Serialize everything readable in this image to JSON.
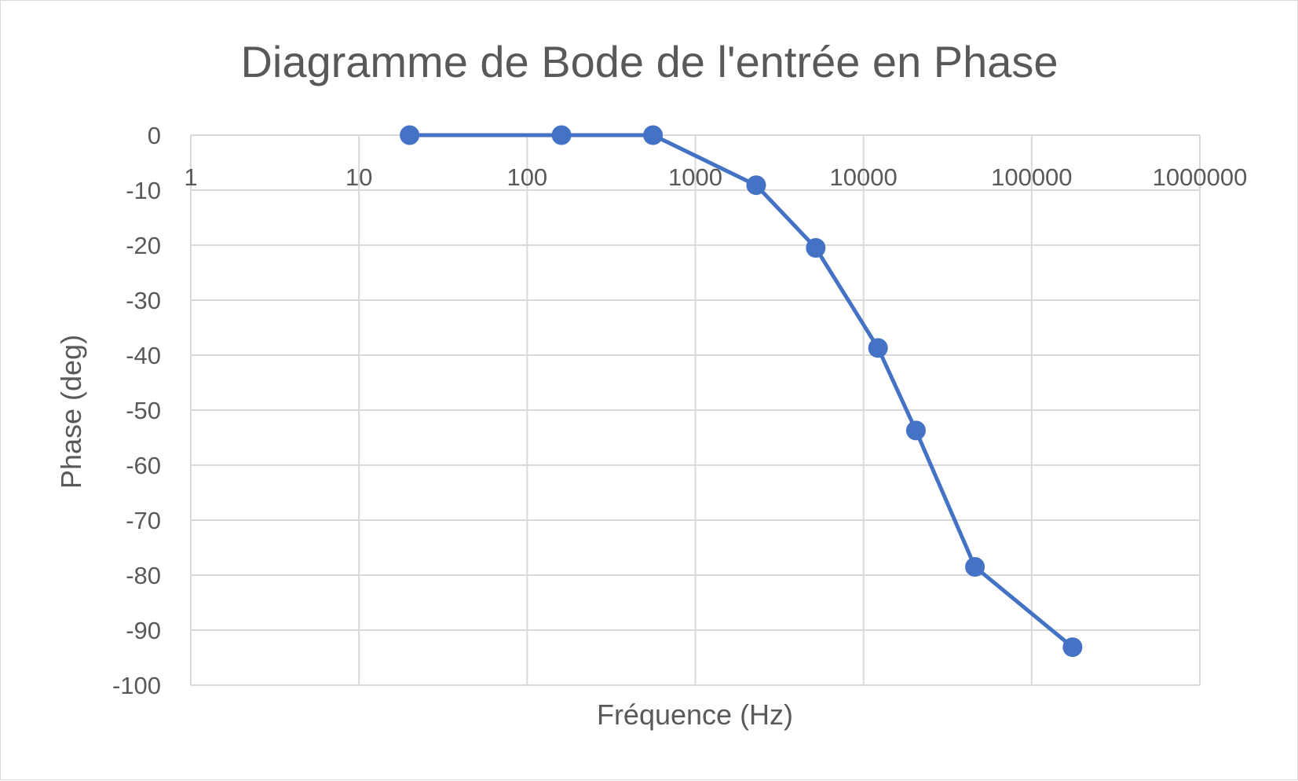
{
  "chart_data": {
    "type": "scatter",
    "title": "Diagramme de Bode de l'entrée en Phase",
    "xlabel": "Fréquence (Hz)",
    "ylabel": "Phase (deg)",
    "x_scale": "log",
    "xlim": [
      1,
      1000000
    ],
    "ylim": [
      -100,
      0
    ],
    "x_ticks": [
      "1",
      "10",
      "100",
      "1000",
      "10000",
      "100000",
      "1000000"
    ],
    "y_ticks": [
      "0",
      "-10",
      "-20",
      "-30",
      "-40",
      "-50",
      "-60",
      "-70",
      "-80",
      "-90",
      "-100"
    ],
    "grid": true,
    "legend": "none",
    "color": "#4472c4",
    "series": [
      {
        "x": [
          20,
          160,
          560,
          2300,
          5200,
          12200,
          20500,
          46000,
          175000
        ],
        "y": [
          0,
          0,
          0,
          -9.1,
          -20.5,
          -38.7,
          -53.7,
          -78.5,
          -93.1
        ]
      }
    ]
  }
}
